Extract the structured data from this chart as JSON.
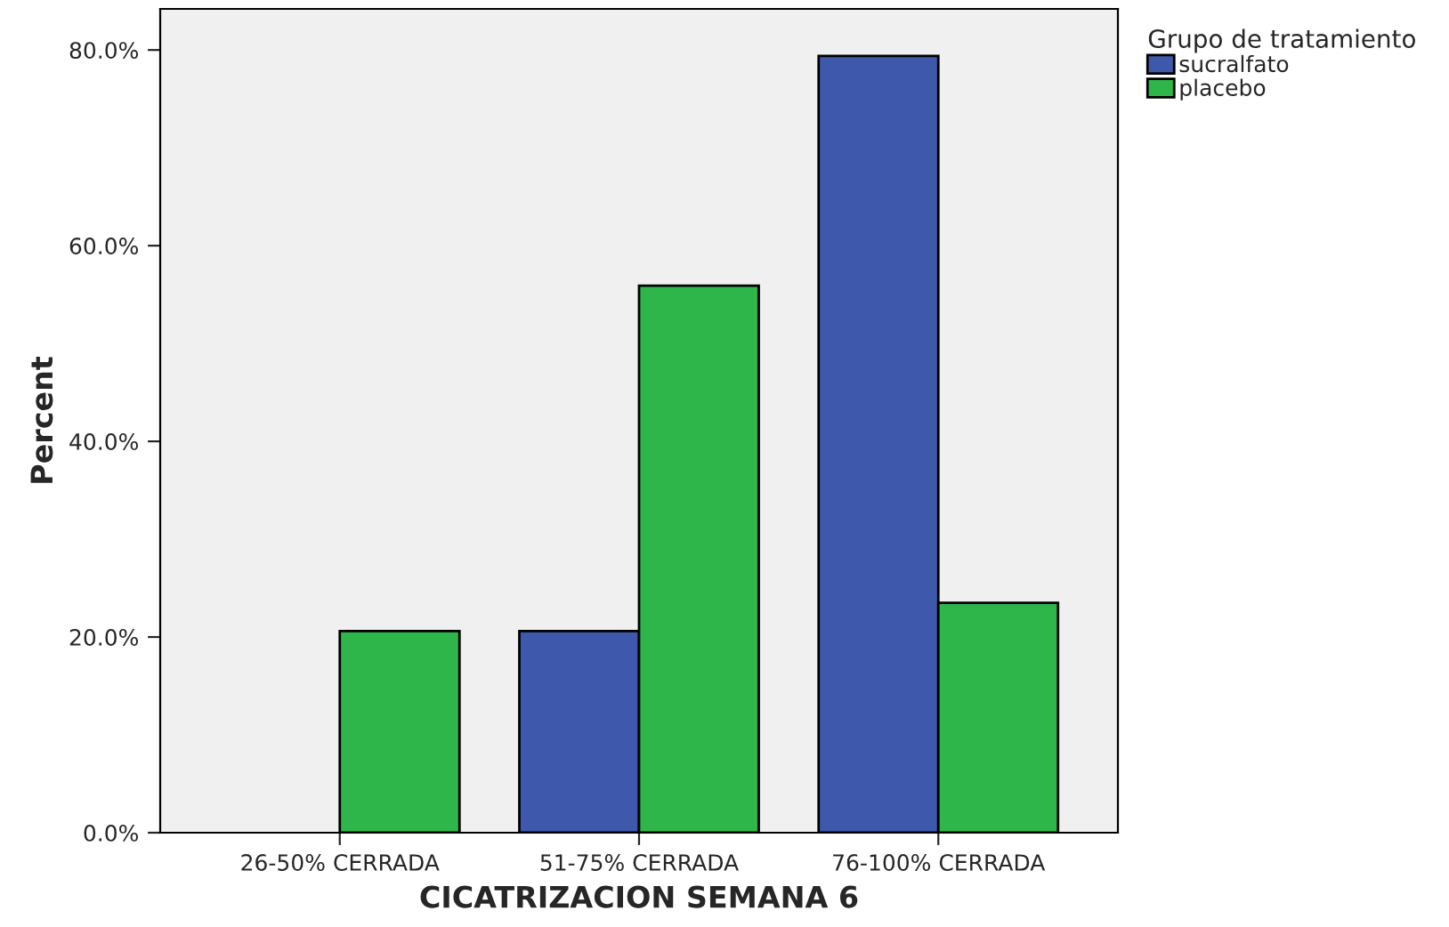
{
  "chart_data": {
    "type": "bar",
    "xlabel": "CICATRIZACION SEMANA 6",
    "ylabel": "Percent",
    "legend_title": "Grupo de tratamiento",
    "categories": [
      "26-50% CERRADA",
      "51-75% CERRADA",
      "76-100% CERRADA"
    ],
    "series": [
      {
        "name": "sucralfato",
        "color": "#3e58ac",
        "values": [
          0,
          20.6,
          79.4
        ]
      },
      {
        "name": "placebo",
        "color": "#2fb64a",
        "values": [
          20.6,
          55.9,
          23.5
        ]
      }
    ],
    "ylim": [
      0,
      84.2
    ],
    "yticks": [
      {
        "value": 0,
        "label": "0.0%"
      },
      {
        "value": 20,
        "label": "20.0%"
      },
      {
        "value": 40,
        "label": "40.0%"
      },
      {
        "value": 60,
        "label": "60.0%"
      },
      {
        "value": 80,
        "label": "80.0%"
      }
    ],
    "grid": false,
    "legend": "top right"
  }
}
